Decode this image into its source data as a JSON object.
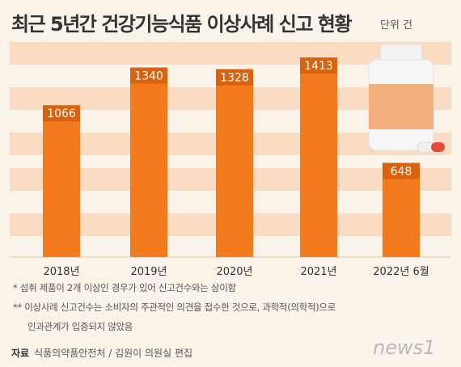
{
  "header": {
    "title": "최근 5년간 건강기능식품 이상사례 신고 현황",
    "unit": "단위 건"
  },
  "chart_data": {
    "type": "bar",
    "title": "최근 5년간 건강기능식품 이상사례 신고 현황",
    "xlabel": "",
    "ylabel": "",
    "unit": "단위 건",
    "categories": [
      "2018년",
      "2019년",
      "2020년",
      "2021년",
      "2022년 6월"
    ],
    "values": [
      1066,
      1340,
      1328,
      1413,
      648
    ],
    "ylim": [
      0,
      1560
    ],
    "grid": "horizontal-bands",
    "colors": {
      "bar": "#f47a1e",
      "label_box": "#d9620f",
      "band": "#f9dcc1"
    }
  },
  "notes": {
    "note1": "* 섭취 제품이 2개 이상인 경우가 있어 신고건수와는 상이함",
    "note2_line1": "** 이상사례 신고건수는 소비자의 주관적인 의견을 접수한 것으로, 과학적(의학적)으로",
    "note2_line2": "인과관계가 입증되지 않았음"
  },
  "source": {
    "label": "자료",
    "text": "식품의약품안전처 / 김원이 의원실 편집"
  },
  "logo": {
    "text": "news1"
  }
}
